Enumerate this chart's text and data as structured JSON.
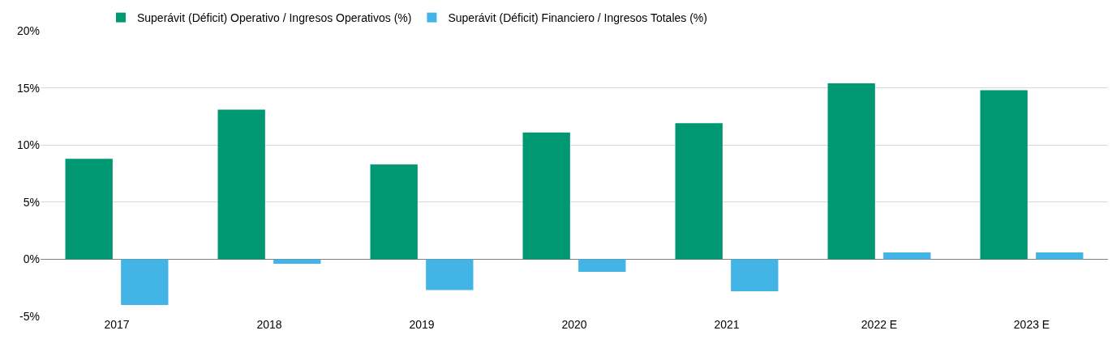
{
  "chart_data": {
    "type": "bar",
    "categories": [
      "2017",
      "2018",
      "2019",
      "2020",
      "2021",
      "2022 E",
      "2023 E"
    ],
    "series": [
      {
        "name": "Superávit (Déficit) Operativo / Ingresos Operativos (%)",
        "color": "#009873",
        "values": [
          8.8,
          13.1,
          8.3,
          11.1,
          11.9,
          15.4,
          14.8
        ]
      },
      {
        "name": "Superávit (Déficit) Financiero / Ingresos Totales (%)",
        "color": "#42b4e6",
        "values": [
          -4.0,
          -0.4,
          -2.7,
          -1.1,
          -2.8,
          0.6,
          0.6
        ]
      }
    ],
    "ylim": [
      -5,
      20
    ],
    "yticks": [
      {
        "value": -5,
        "label": "-5%"
      },
      {
        "value": 0,
        "label": "0%"
      },
      {
        "value": 5,
        "label": "5%"
      },
      {
        "value": 10,
        "label": "10%"
      },
      {
        "value": 15,
        "label": "15%"
      },
      {
        "value": 20,
        "label": "20%"
      }
    ],
    "grid": "y",
    "legend": "top left"
  }
}
